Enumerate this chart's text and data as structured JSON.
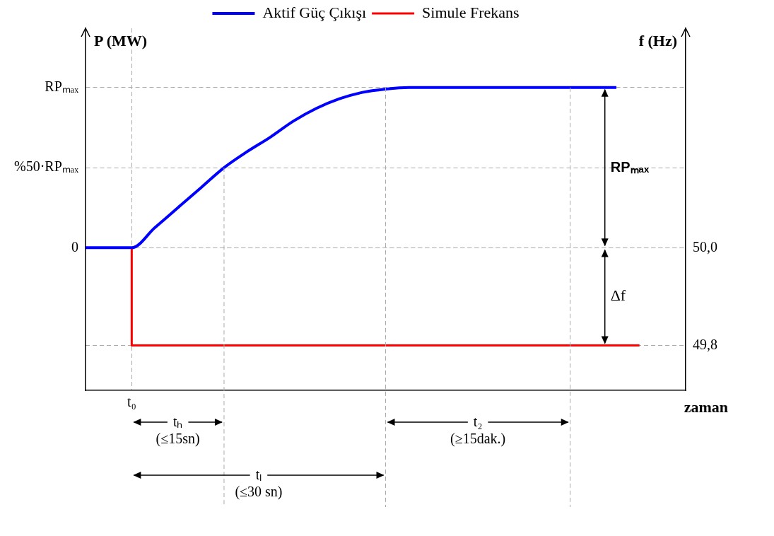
{
  "chart_data": {
    "type": "line",
    "ylabel": "P (MW)",
    "y2label": "f (Hz)",
    "xlabel": "zaman",
    "categories": [
      null,
      null,
      "t₀",
      null,
      null,
      null,
      null,
      null,
      null,
      null,
      null,
      null,
      null,
      null,
      null,
      null,
      null,
      null,
      null,
      null,
      null,
      null,
      null,
      null,
      null,
      null,
      null
    ],
    "ylim": [
      -0.89,
      1.37
    ],
    "yticks": [
      {
        "value": 0,
        "label": "0"
      },
      {
        "value": 0.5,
        "label": "%50·RPₘₐₓ"
      },
      {
        "value": 1,
        "label": "RPₘₐₓ"
      }
    ],
    "y2lim": [
      49.708,
      50.45
    ],
    "y2ticks": [
      {
        "value": 50,
        "label": "50,0"
      },
      {
        "value": 49.8,
        "label": "49,8"
      }
    ],
    "series": [
      {
        "name": "Aktif Güç Çıkışı",
        "color": "#0000ff",
        "values": [
          0,
          0,
          0,
          0.125,
          0.25,
          0.375,
          0.5,
          0.6,
          0.69,
          0.79,
          0.87,
          0.93,
          0.97,
          0.99,
          1,
          1,
          1,
          1,
          1,
          1,
          1,
          1,
          1,
          1,
          null,
          null,
          null
        ]
      },
      {
        "name": "Simule Frekans",
        "color": "#ff0000",
        "axis": "y2",
        "type": "step",
        "values": [
          50,
          50,
          49.8,
          49.8,
          49.8,
          49.8,
          49.8,
          49.8,
          49.8,
          49.8,
          49.8,
          49.8,
          49.8,
          49.8,
          49.8,
          49.8,
          49.8,
          49.8,
          49.8,
          49.8,
          49.8,
          49.8,
          49.8,
          49.8,
          49.8,
          null,
          null
        ]
      }
    ],
    "annotations": [
      "tₕ\n(≤15sn)",
      "tₗ\n(≤30 sn)",
      "t₂\n(≥15dak.)",
      "RPₘₐₓ",
      "Δf"
    ],
    "legend": "top",
    "grid": true,
    "line_style": "solid"
  }
}
